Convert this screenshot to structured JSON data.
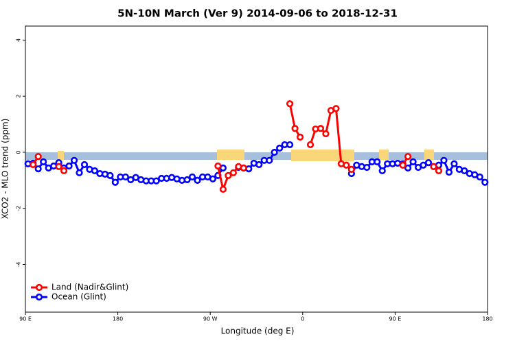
{
  "chart_data": {
    "type": "line",
    "title": "5N-10N March (Ver 9)   2014-09-06 to 2018-12-31",
    "x_label": "Longitude (deg E)",
    "y_label": "XCO2 - MLO trend (ppm)",
    "xlim": [
      90,
      540
    ],
    "xticks": [
      {
        "value": 90,
        "label": "90 E"
      },
      180,
      {
        "value": 270,
        "label": "90 W"
      },
      {
        "value": 360,
        "label": "0"
      },
      {
        "value": 450,
        "label": "90 E"
      },
      {
        "value": 540,
        "label": "180"
      }
    ],
    "ylim": [
      -5.7,
      4.5
    ],
    "yticks": [
      -4,
      -2,
      0,
      2,
      4
    ],
    "legend": "bottom-left",
    "x": [
      92.5,
      97.5,
      102.5,
      107.5,
      112.5,
      117.5,
      122.5,
      127.5,
      132.5,
      137.5,
      142.5,
      147.5,
      152.5,
      157.5,
      162.5,
      167.5,
      172.5,
      177.5,
      182.5,
      187.5,
      192.5,
      197.5,
      202.5,
      207.5,
      212.5,
      217.5,
      222.5,
      227.5,
      232.5,
      237.5,
      242.5,
      247.5,
      252.5,
      257.5,
      262.5,
      267.5,
      272.5,
      277.5,
      282.5,
      287.5,
      292.5,
      297.5,
      302.5,
      307.5,
      312.5,
      317.5,
      322.5,
      327.5,
      332.5,
      337.5,
      342.5,
      347.5,
      352.5,
      357.5,
      362.5,
      367.5,
      372.5,
      377.5,
      382.5,
      387.5,
      392.5,
      397.5,
      402.5,
      407.5,
      412.5,
      417.5,
      422.5,
      427.5,
      432.5,
      437.5,
      442.5,
      447.5,
      452.5,
      457.5,
      462.5,
      467.5,
      472.5,
      477.5,
      482.5,
      487.5,
      492.5,
      497.5,
      502.5,
      507.5,
      512.5,
      517.5,
      522.5,
      527.5,
      532.5,
      537.5
    ],
    "series": [
      {
        "name": "Land (Nadir&Glint)",
        "color": "#ff0000",
        "values": [
          null,
          -0.44,
          -0.15,
          null,
          null,
          null,
          -0.51,
          -0.66,
          null,
          null,
          null,
          null,
          null,
          null,
          null,
          null,
          null,
          null,
          null,
          null,
          null,
          null,
          null,
          null,
          null,
          null,
          null,
          null,
          null,
          null,
          null,
          null,
          null,
          null,
          null,
          null,
          null,
          -0.49,
          -1.32,
          -0.83,
          -0.73,
          -0.51,
          -0.56,
          null,
          null,
          null,
          null,
          null,
          null,
          null,
          null,
          1.73,
          0.85,
          0.54,
          null,
          0.27,
          0.83,
          0.85,
          0.66,
          1.49,
          1.56,
          -0.41,
          -0.46,
          -0.61,
          null,
          null,
          null,
          null,
          null,
          null,
          null,
          null,
          null,
          -0.46,
          -0.15,
          null,
          null,
          null,
          null,
          -0.51,
          -0.66,
          null,
          null,
          null,
          null,
          null,
          null,
          null,
          null,
          null
        ]
      },
      {
        "name": "Ocean (Glint)",
        "color": "#0000ff",
        "values": [
          -0.41,
          -0.39,
          -0.59,
          -0.34,
          -0.56,
          -0.49,
          -0.37,
          -0.56,
          -0.49,
          -0.29,
          -0.73,
          -0.44,
          -0.61,
          -0.66,
          -0.76,
          -0.78,
          -0.83,
          -1.07,
          -0.88,
          -0.88,
          -0.98,
          -0.9,
          -0.98,
          -1.02,
          -1.02,
          -1.02,
          -0.93,
          -0.93,
          -0.9,
          -0.95,
          -1.0,
          -0.98,
          -0.88,
          -1.0,
          -0.88,
          -0.88,
          -0.95,
          -0.83,
          -0.56,
          null,
          null,
          -0.54,
          -0.56,
          -0.59,
          -0.39,
          -0.44,
          -0.29,
          -0.29,
          0,
          0.15,
          0.27,
          0.27,
          null,
          null,
          null,
          null,
          null,
          null,
          null,
          null,
          null,
          null,
          null,
          -0.76,
          -0.46,
          -0.51,
          -0.54,
          -0.34,
          -0.34,
          -0.66,
          -0.41,
          -0.41,
          -0.39,
          -0.41,
          -0.56,
          -0.34,
          -0.54,
          -0.46,
          -0.37,
          -0.51,
          -0.46,
          -0.29,
          -0.71,
          -0.41,
          -0.61,
          -0.66,
          -0.76,
          -0.8,
          -0.88,
          -1.07
        ]
      }
    ]
  }
}
